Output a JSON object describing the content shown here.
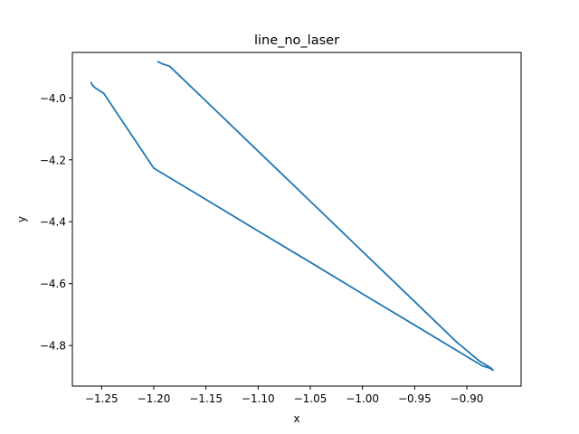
{
  "chart_data": {
    "type": "line",
    "title": "line_no_laser",
    "xlabel": "x",
    "ylabel": "y",
    "xlim": [
      -1.278,
      -0.848
    ],
    "ylim": [
      -4.931,
      -3.853
    ],
    "xticks": [
      -1.25,
      -1.2,
      -1.15,
      -1.1,
      -1.05,
      -1.0,
      -0.95,
      -0.9
    ],
    "xtick_labels": [
      "−1.25",
      "−1.20",
      "−1.15",
      "−1.10",
      "−1.05",
      "−1.00",
      "−0.95",
      "−0.90"
    ],
    "yticks": [
      -4.0,
      -4.2,
      -4.4,
      -4.6,
      -4.8
    ],
    "ytick_labels": [
      "−4.0",
      "−4.2",
      "−4.4",
      "−4.6",
      "−4.8"
    ],
    "grid": false,
    "series": [
      {
        "color": "#1f77b4",
        "x": [
          -1.196,
          -1.194,
          -1.191,
          -1.185,
          -1.15,
          -1.1,
          -1.05,
          -1.0,
          -0.95,
          -0.91,
          -0.888,
          -0.88,
          -0.876,
          -0.875,
          -0.878,
          -0.885,
          -0.95,
          -1.0,
          -1.05,
          -1.1,
          -1.15,
          -1.2,
          -1.248,
          -1.256,
          -1.259,
          -1.26
        ],
        "y": [
          -3.883,
          -3.886,
          -3.891,
          -3.897,
          -4.01,
          -4.172,
          -4.334,
          -4.496,
          -4.658,
          -4.788,
          -4.85,
          -4.866,
          -4.875,
          -4.88,
          -4.873,
          -4.866,
          -4.734,
          -4.633,
          -4.531,
          -4.43,
          -4.328,
          -4.227,
          -3.985,
          -3.968,
          -3.958,
          -3.95
        ]
      }
    ]
  }
}
